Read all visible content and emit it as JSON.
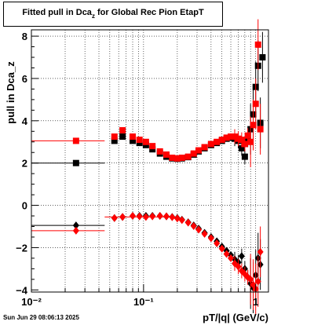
{
  "header": {
    "title_main": "Fitted pull in Dca",
    "title_sub": "z",
    "title_tail": " for Global Rec Pion EtapT"
  },
  "footer": {
    "timestamp": "Sun Jun 29 08:06:13 2025"
  },
  "chart_data": {
    "type": "scatter",
    "title": "Fitted pull in Dca_z for Global Rec Pion EtapT",
    "xlabel": "pT/|q| (GeV/c)",
    "ylabel": "pull in Dca_z",
    "x_scale": "log",
    "xlim": [
      0.01,
      1.3
    ],
    "ylim": [
      -4.1,
      8.3
    ],
    "x_ticks": [
      0.01,
      0.1,
      1
    ],
    "x_tick_labels": [
      "10⁻²",
      "10⁻¹",
      "1"
    ],
    "y_ticks": [
      -4,
      -2,
      0,
      2,
      4,
      6,
      8
    ],
    "y_tick_labels": [
      "−4",
      "−2",
      "0",
      "2",
      "4",
      "6",
      "8"
    ],
    "grid": true,
    "series": [
      {
        "marker": "square",
        "color": "#000000",
        "points": [
          [
            0.025,
            2.0
          ],
          [
            0.055,
            3.05
          ],
          [
            0.065,
            3.25
          ],
          [
            0.08,
            3.05
          ],
          [
            0.092,
            2.95
          ],
          [
            0.105,
            2.85
          ],
          [
            0.12,
            2.65
          ],
          [
            0.14,
            2.45
          ],
          [
            0.16,
            2.3
          ],
          [
            0.18,
            2.22
          ],
          [
            0.2,
            2.2
          ],
          [
            0.22,
            2.22
          ],
          [
            0.25,
            2.28
          ],
          [
            0.28,
            2.4
          ],
          [
            0.31,
            2.55
          ],
          [
            0.35,
            2.7
          ],
          [
            0.4,
            2.85
          ],
          [
            0.45,
            2.95
          ],
          [
            0.5,
            3.05
          ],
          [
            0.55,
            3.15
          ],
          [
            0.6,
            3.2
          ],
          [
            0.65,
            3.15
          ],
          [
            0.7,
            3.05
          ],
          [
            0.75,
            2.7
          ],
          [
            0.8,
            2.3
          ],
          [
            0.85,
            3.1
          ],
          [
            0.9,
            3.6
          ],
          [
            0.95,
            4.3
          ],
          [
            1.0,
            5.6
          ],
          [
            1.05,
            6.6
          ],
          [
            1.1,
            3.9
          ],
          [
            1.15,
            7.0
          ]
        ]
      },
      {
        "marker": "square",
        "color": "#ff0000",
        "points": [
          [
            0.025,
            3.05
          ],
          [
            0.055,
            3.25
          ],
          [
            0.065,
            3.55
          ],
          [
            0.08,
            3.25
          ],
          [
            0.092,
            3.1
          ],
          [
            0.105,
            3.0
          ],
          [
            0.12,
            2.8
          ],
          [
            0.14,
            2.55
          ],
          [
            0.16,
            2.4
          ],
          [
            0.18,
            2.25
          ],
          [
            0.2,
            2.22
          ],
          [
            0.22,
            2.25
          ],
          [
            0.25,
            2.3
          ],
          [
            0.28,
            2.45
          ],
          [
            0.31,
            2.6
          ],
          [
            0.35,
            2.75
          ],
          [
            0.4,
            2.9
          ],
          [
            0.45,
            3.0
          ],
          [
            0.5,
            3.1
          ],
          [
            0.55,
            3.2
          ],
          [
            0.6,
            3.25
          ],
          [
            0.65,
            3.25
          ],
          [
            0.7,
            3.15
          ],
          [
            0.75,
            3.1
          ],
          [
            0.8,
            2.9
          ],
          [
            0.85,
            3.3
          ],
          [
            0.9,
            3.0
          ],
          [
            0.95,
            3.8
          ],
          [
            1.0,
            4.8
          ],
          [
            1.05,
            7.6
          ],
          [
            1.1,
            3.6
          ]
        ]
      },
      {
        "marker": "diamond",
        "color": "#000000",
        "points": [
          [
            0.025,
            -0.95
          ],
          [
            0.055,
            -0.6
          ],
          [
            0.065,
            -0.55
          ],
          [
            0.08,
            -0.5
          ],
          [
            0.092,
            -0.5
          ],
          [
            0.105,
            -0.5
          ],
          [
            0.12,
            -0.5
          ],
          [
            0.14,
            -0.5
          ],
          [
            0.16,
            -0.52
          ],
          [
            0.18,
            -0.55
          ],
          [
            0.2,
            -0.6
          ],
          [
            0.22,
            -0.68
          ],
          [
            0.25,
            -0.8
          ],
          [
            0.28,
            -0.95
          ],
          [
            0.31,
            -1.1
          ],
          [
            0.35,
            -1.3
          ],
          [
            0.4,
            -1.5
          ],
          [
            0.45,
            -1.7
          ],
          [
            0.5,
            -1.95
          ],
          [
            0.55,
            -2.15
          ],
          [
            0.6,
            -2.35
          ],
          [
            0.65,
            -2.55
          ],
          [
            0.7,
            -2.7
          ],
          [
            0.75,
            -2.4
          ],
          [
            0.8,
            -3.0
          ],
          [
            0.85,
            -3.4
          ],
          [
            0.9,
            -3.7
          ],
          [
            0.95,
            -3.9
          ],
          [
            1.0,
            -3.3
          ],
          [
            1.05,
            -2.5
          ],
          [
            1.1,
            -2.8
          ]
        ]
      },
      {
        "marker": "diamond",
        "color": "#ff0000",
        "points": [
          [
            0.025,
            -1.2
          ],
          [
            0.055,
            -0.6
          ],
          [
            0.065,
            -0.55
          ],
          [
            0.08,
            -0.5
          ],
          [
            0.092,
            -0.52
          ],
          [
            0.105,
            -0.55
          ],
          [
            0.12,
            -0.52
          ],
          [
            0.14,
            -0.5
          ],
          [
            0.16,
            -0.52
          ],
          [
            0.18,
            -0.56
          ],
          [
            0.2,
            -0.62
          ],
          [
            0.22,
            -0.7
          ],
          [
            0.25,
            -0.82
          ],
          [
            0.28,
            -0.98
          ],
          [
            0.31,
            -1.15
          ],
          [
            0.35,
            -1.35
          ],
          [
            0.4,
            -1.55
          ],
          [
            0.45,
            -1.8
          ],
          [
            0.5,
            -2.05
          ],
          [
            0.55,
            -2.3
          ],
          [
            0.6,
            -2.5
          ],
          [
            0.65,
            -2.75
          ],
          [
            0.7,
            -2.9
          ],
          [
            0.75,
            -3.1
          ],
          [
            0.8,
            -3.25
          ],
          [
            0.85,
            -3.4
          ],
          [
            0.9,
            -3.5
          ],
          [
            0.95,
            -3.75
          ],
          [
            1.0,
            -3.95
          ],
          [
            1.05,
            -3.6
          ],
          [
            1.1,
            -2.2
          ]
        ]
      }
    ]
  }
}
